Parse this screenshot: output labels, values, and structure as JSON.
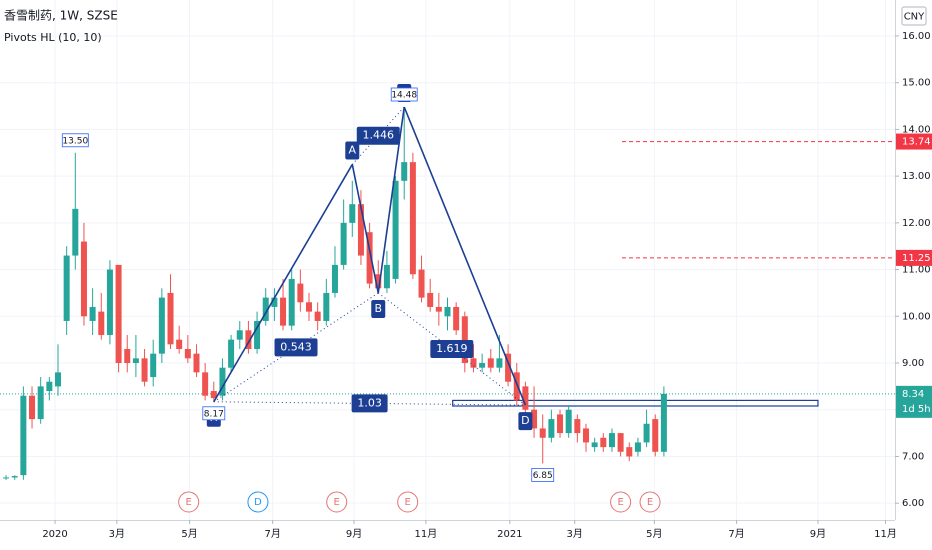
{
  "chart_data": {
    "type": "candlestick",
    "title": "香雪制药, 1W, SZSE",
    "subtitle": "Pivots HL (10, 10)",
    "currency": "CNY",
    "up_color": "#26a69a",
    "down_color": "#ef5350",
    "grid": true,
    "categories": [
      null,
      null,
      null,
      null,
      null,
      null,
      null,
      null,
      null,
      null,
      null,
      null,
      null,
      null,
      null,
      null,
      null,
      null,
      null,
      null,
      null,
      null,
      null,
      null,
      null,
      null,
      null,
      null,
      null,
      null,
      null,
      null,
      null,
      null,
      null,
      null,
      null,
      null,
      null,
      null,
      null,
      null,
      null,
      null,
      null,
      null,
      null,
      null,
      null,
      null,
      null,
      null,
      null,
      null,
      null,
      null,
      null,
      null,
      null,
      null,
      null,
      null,
      null,
      null,
      null,
      null,
      null,
      null,
      null,
      null,
      null,
      null,
      null,
      null,
      null,
      null,
      null
    ],
    "open": [
      6.55,
      6.55,
      6.6,
      8.3,
      7.8,
      8.4,
      8.5,
      9.9,
      11.3,
      11.6,
      9.9,
      10.1,
      9.6,
      11.1,
      9.3,
      9.0,
      9.1,
      8.7,
      9.2,
      10.5,
      9.5,
      9.3,
      9.2,
      8.8,
      8.4,
      8.3,
      8.9,
      9.5,
      9.7,
      9.3,
      9.9,
      10.2,
      10.4,
      9.8,
      10.7,
      10.3,
      10.1,
      9.9,
      10.5,
      11.1,
      12.0,
      12.4,
      11.8,
      10.9,
      10.6,
      10.8,
      12.9,
      13.3,
      11.0,
      10.5,
      10.2,
      10.0,
      10.2,
      10.0,
      9.1,
      8.9,
      9.1,
      8.9,
      9.2,
      8.8,
      8.5,
      8.0,
      7.6,
      7.4,
      7.9,
      7.5,
      7.8,
      7.6,
      7.2,
      7.4,
      7.2,
      7.5,
      7.2,
      7.1,
      7.3,
      7.8,
      7.1
    ],
    "high": [
      6.6,
      6.6,
      8.5,
      8.5,
      8.7,
      8.7,
      9.4,
      11.5,
      13.5,
      12.0,
      10.6,
      10.5,
      11.2,
      11.1,
      9.6,
      9.6,
      9.3,
      9.5,
      10.6,
      10.9,
      9.8,
      9.6,
      9.4,
      9.0,
      8.6,
      9.1,
      9.6,
      9.9,
      9.9,
      10.1,
      10.6,
      10.6,
      10.8,
      11.0,
      11.0,
      10.5,
      10.3,
      10.8,
      11.5,
      12.5,
      12.9,
      12.7,
      12.0,
      11.2,
      11.4,
      13.0,
      14.48,
      13.5,
      11.3,
      10.8,
      10.5,
      10.4,
      10.3,
      10.1,
      9.4,
      9.2,
      9.3,
      9.6,
      9.4,
      9.0,
      8.6,
      8.5,
      7.9,
      8.0,
      8.0,
      8.1,
      7.9,
      7.7,
      7.4,
      7.5,
      7.6,
      7.5,
      7.3,
      7.4,
      8.0,
      7.9,
      8.5
    ],
    "low": [
      6.5,
      6.5,
      6.5,
      7.6,
      7.7,
      8.2,
      8.3,
      9.6,
      11.0,
      9.8,
      9.6,
      9.5,
      9.4,
      8.8,
      8.8,
      8.7,
      8.5,
      8.5,
      9.0,
      9.3,
      9.2,
      9.0,
      8.7,
      8.2,
      8.17,
      8.2,
      8.8,
      9.3,
      9.2,
      9.2,
      9.8,
      9.9,
      9.7,
      9.7,
      10.1,
      9.9,
      9.7,
      9.8,
      10.4,
      11.0,
      11.7,
      11.1,
      10.6,
      10.5,
      10.5,
      10.7,
      12.5,
      10.8,
      10.3,
      10.1,
      9.8,
      9.7,
      9.6,
      8.8,
      8.8,
      8.8,
      8.8,
      8.8,
      8.5,
      8.1,
      7.9,
      7.4,
      6.85,
      7.3,
      7.4,
      7.4,
      7.3,
      7.1,
      7.1,
      7.1,
      7.1,
      7.0,
      6.9,
      7.0,
      7.2,
      7.0,
      7.0
    ],
    "close": [
      6.55,
      6.58,
      8.3,
      7.8,
      8.5,
      8.6,
      8.8,
      11.3,
      12.3,
      10.0,
      10.2,
      9.6,
      11.0,
      9.0,
      9.0,
      9.1,
      8.6,
      9.2,
      10.4,
      9.4,
      9.3,
      9.1,
      8.8,
      8.3,
      8.25,
      8.9,
      9.5,
      9.7,
      9.3,
      9.9,
      10.4,
      10.4,
      9.8,
      10.8,
      10.3,
      10.1,
      9.9,
      10.5,
      11.1,
      12.0,
      12.4,
      11.3,
      10.7,
      10.6,
      11.1,
      12.9,
      13.3,
      10.9,
      10.4,
      10.2,
      10.1,
      10.2,
      9.7,
      9.0,
      8.9,
      9.0,
      8.9,
      9.1,
      8.6,
      8.2,
      8.0,
      7.6,
      7.4,
      7.8,
      7.5,
      8.0,
      7.5,
      7.3,
      7.3,
      7.2,
      7.5,
      7.1,
      7.0,
      7.3,
      7.7,
      7.1,
      8.34
    ],
    "xlim": [
      -0.7,
      102.7
    ],
    "xticks": [
      {
        "value": 5.66,
        "label": "2020"
      },
      {
        "value": 12.8,
        "label": "3月"
      },
      {
        "value": 21.2,
        "label": "5月"
      },
      {
        "value": 30.8,
        "label": "7月"
      },
      {
        "value": 40.2,
        "label": "9月"
      },
      {
        "value": 48.5,
        "label": "11月"
      },
      {
        "value": 58.2,
        "label": "2021"
      },
      {
        "value": 65.7,
        "label": "3月"
      },
      {
        "value": 74.9,
        "label": "5月"
      },
      {
        "value": 84.4,
        "label": "7月"
      },
      {
        "value": 93.8,
        "label": "9月"
      },
      {
        "value": 101.6,
        "label": "11月"
      }
    ],
    "ylim": [
      5.64,
      16.77
    ],
    "yticks": [
      {
        "value": 6,
        "label": "6.00"
      },
      {
        "value": 7,
        "label": "7.00"
      },
      {
        "value": 8,
        "label": "8.00"
      },
      {
        "value": 9,
        "label": "9.00"
      },
      {
        "value": 10,
        "label": "10.00"
      },
      {
        "value": 11,
        "label": "11.00"
      },
      {
        "value": 12,
        "label": "12.00"
      },
      {
        "value": 13,
        "label": "13.00"
      },
      {
        "value": 14,
        "label": "14.00"
      },
      {
        "value": 15,
        "label": "15.00"
      },
      {
        "value": 16,
        "label": "16.00"
      }
    ],
    "pattern_color": "#1c3f94",
    "pattern_points": [
      {
        "label": "X",
        "x": 24,
        "value": 8.17
      },
      {
        "label": "A",
        "x": 40,
        "value": 13.25
      },
      {
        "label": "B",
        "x": 43,
        "value": 10.5
      },
      {
        "label": "C",
        "x": 46,
        "value": 14.48
      },
      {
        "label": "D",
        "x": 60,
        "value": 8.1
      }
    ],
    "ratios": [
      0.543,
      1.446,
      1.619,
      1.03
    ],
    "pivot_highs": [
      {
        "x": 8,
        "value": 13.5,
        "label": "13.50"
      },
      {
        "x": 46,
        "value": 14.48,
        "label": "14.48"
      }
    ],
    "pivot_lows": [
      {
        "x": 24,
        "value": 8.17
      },
      {
        "x": 62,
        "value": 6.85
      }
    ],
    "target_box": {
      "x": [
        51.6,
        93.8
      ],
      "y": [
        8.08,
        8.2
      ]
    },
    "price_lines": [
      13.74,
      11.25
    ],
    "price_line_color": "#f23645",
    "last_price": 8.34,
    "countdown": "1d 5h",
    "events": [
      {
        "x": 21.1,
        "label": "E"
      },
      {
        "x": 29.1,
        "label": "D"
      },
      {
        "x": 38.2,
        "label": "E"
      },
      {
        "x": 46.4,
        "label": "E"
      },
      {
        "x": 71.0,
        "label": "E"
      },
      {
        "x": 74.4,
        "label": "E"
      }
    ]
  }
}
